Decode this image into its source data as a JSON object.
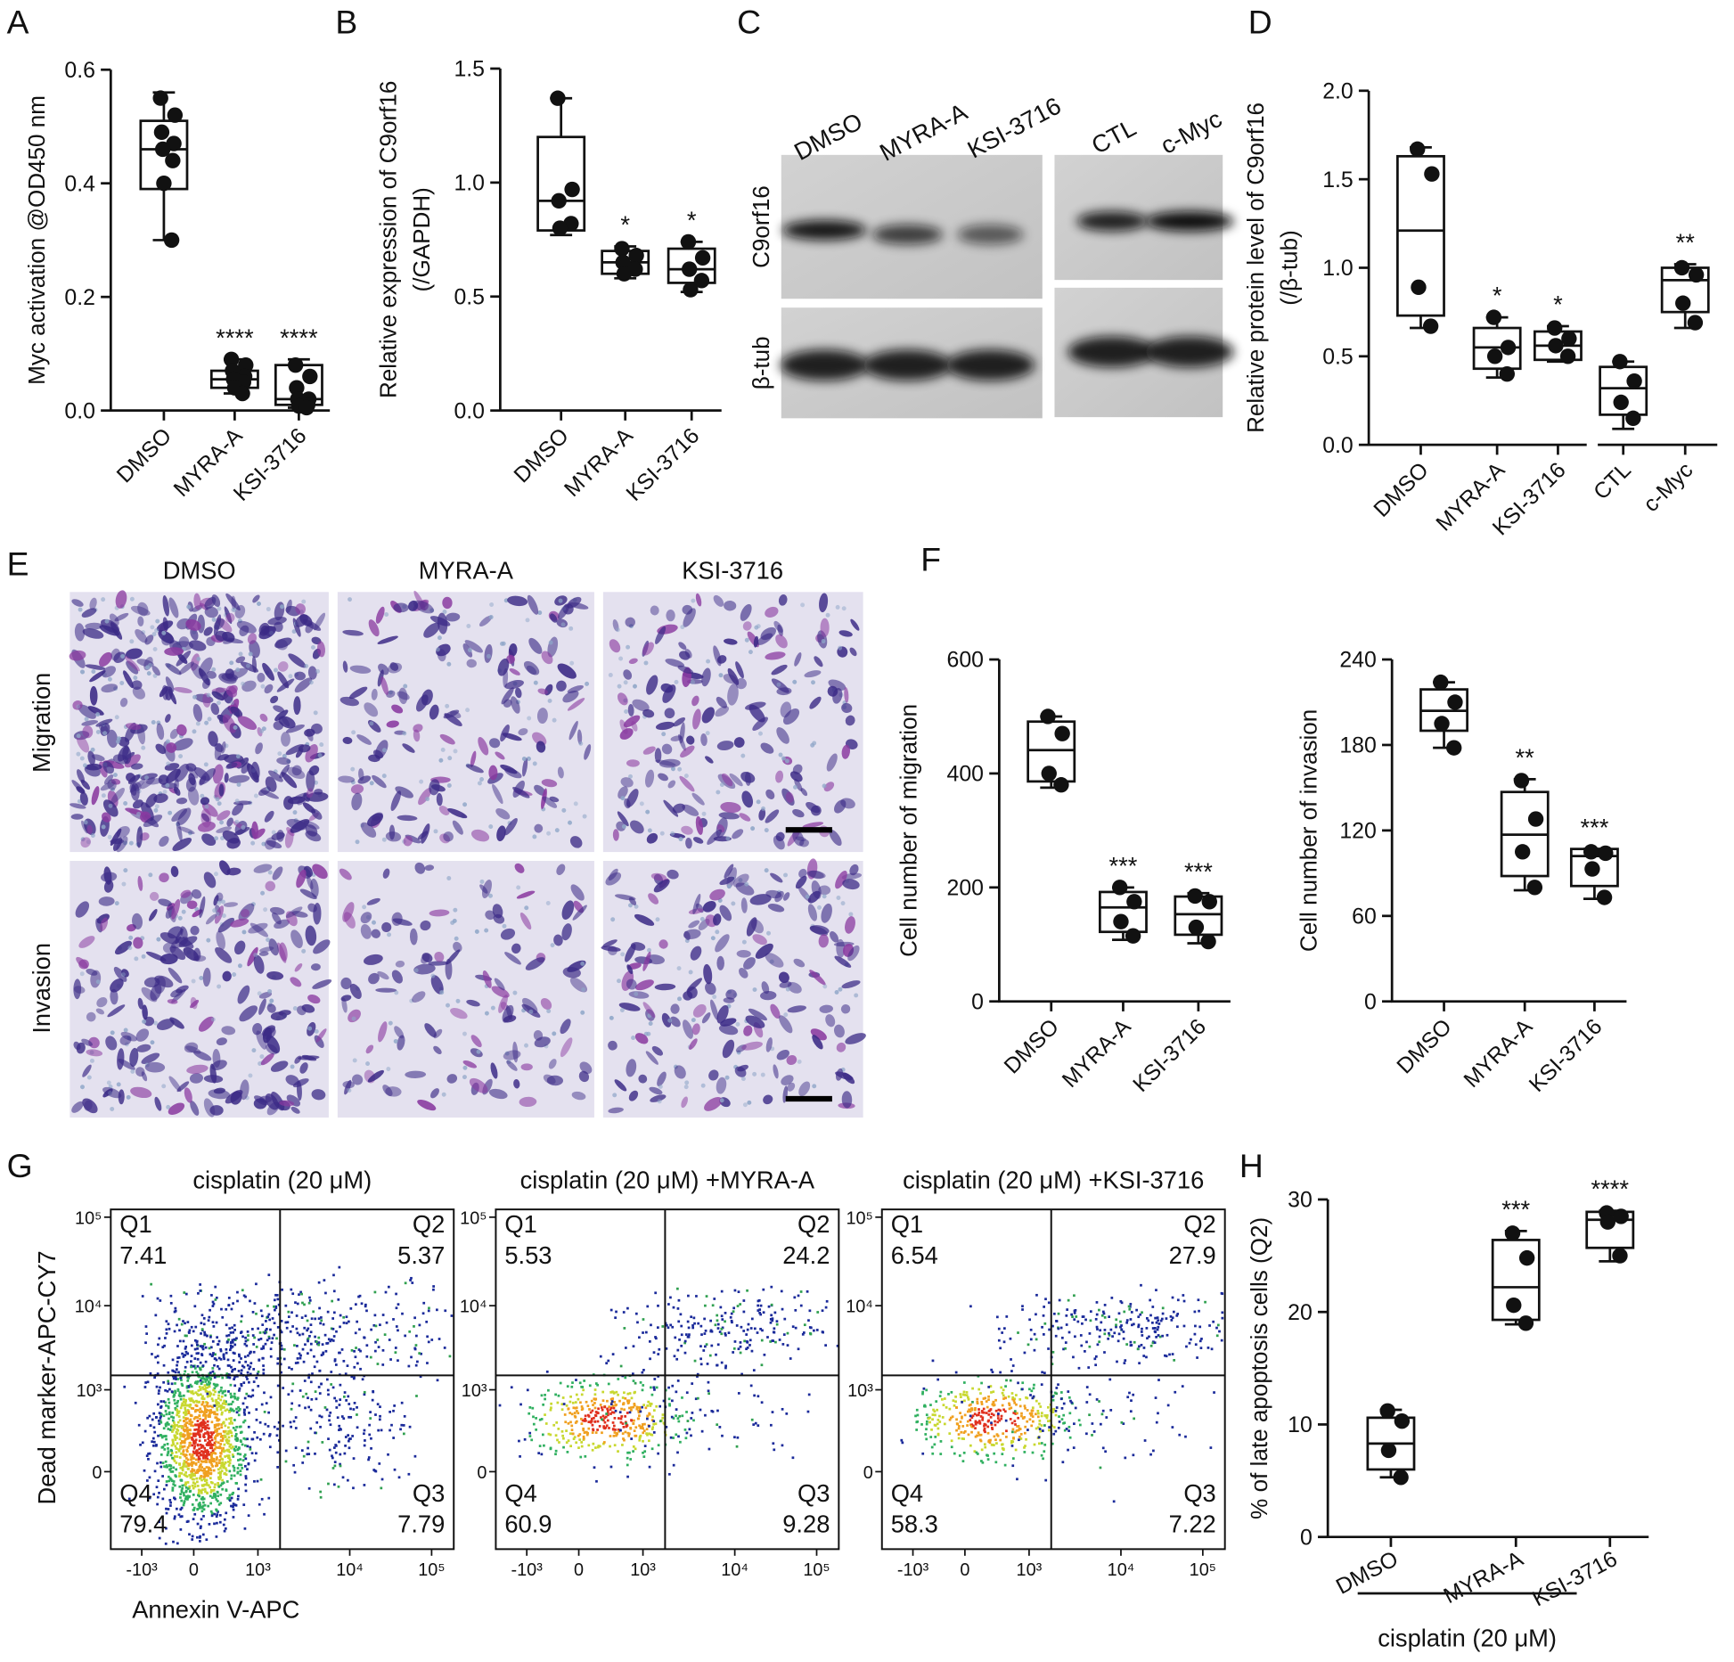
{
  "chart_data": [
    {
      "type": "box",
      "panel": "A",
      "ylabel": [
        "Myc activation @OD450 nm"
      ],
      "categories": [
        "DMSO",
        "MYRA-A",
        "KSI-3716"
      ],
      "ylim": [
        0,
        0.6
      ],
      "yticks": [
        {
          "value": 0,
          "label": "0.0"
        },
        0.2,
        0.4,
        0.6
      ],
      "groups": [
        {
          "min": 0.3,
          "q1": 0.39,
          "median": 0.46,
          "q3": 0.51,
          "max": 0.56,
          "points": [
            0.55,
            0.52,
            0.49,
            0.47,
            0.46,
            0.44,
            0.4,
            0.3
          ]
        },
        {
          "min": 0.03,
          "q1": 0.04,
          "median": 0.055,
          "q3": 0.07,
          "max": 0.09,
          "points": [
            0.09,
            0.08,
            0.07,
            0.06,
            0.055,
            0.05,
            0.04,
            0.03
          ]
        },
        {
          "min": 0.005,
          "q1": 0.01,
          "median": 0.02,
          "q3": 0.08,
          "max": 0.09,
          "points": [
            0.08,
            0.06,
            0.04,
            0.02,
            0.02,
            0.01,
            0.008,
            0.005
          ]
        }
      ],
      "annotations": [
        null,
        "****",
        "****"
      ]
    },
    {
      "type": "box",
      "panel": "B",
      "ylabel": [
        "Relative expression of C9orf16",
        "(/GAPDH)"
      ],
      "categories": [
        "DMSO",
        "MYRA-A",
        "KSI-3716"
      ],
      "ylim": [
        0,
        1.5
      ],
      "yticks": [
        {
          "value": 0,
          "label": "0.0"
        },
        0.5,
        {
          "value": 1,
          "label": "1.0"
        },
        1.5
      ],
      "groups": [
        {
          "min": 0.77,
          "q1": 0.79,
          "median": 0.92,
          "q3": 1.2,
          "max": 1.37,
          "points": [
            1.37,
            0.97,
            0.92,
            0.82,
            0.8
          ]
        },
        {
          "min": 0.58,
          "q1": 0.6,
          "median": 0.65,
          "q3": 0.7,
          "max": 0.72,
          "points": [
            0.71,
            0.68,
            0.65,
            0.62,
            0.6
          ]
        },
        {
          "min": 0.52,
          "q1": 0.56,
          "median": 0.62,
          "q3": 0.71,
          "max": 0.74,
          "points": [
            0.74,
            0.67,
            0.62,
            0.57,
            0.53
          ]
        }
      ],
      "annotations": [
        null,
        "*",
        "*"
      ]
    },
    {
      "type": "box",
      "panel": "D",
      "ylabel": [
        "Relative protein level of C9orf16",
        "(/β-tub)"
      ],
      "categories": [
        "DMSO",
        "MYRA-A",
        "KSI-3716",
        "CTL",
        "c-Myc"
      ],
      "ylim": [
        0,
        2
      ],
      "yticks": [
        {
          "value": 0,
          "label": "0.0"
        },
        0.5,
        {
          "value": 1,
          "label": "1.0"
        },
        1.5,
        {
          "value": 2,
          "label": "2.0"
        }
      ],
      "groups": [
        {
          "min": 0.66,
          "q1": 0.73,
          "median": 1.21,
          "q3": 1.63,
          "max": 1.68,
          "points": [
            1.67,
            1.53,
            0.89,
            0.67
          ]
        },
        {
          "min": 0.38,
          "q1": 0.43,
          "median": 0.55,
          "q3": 0.66,
          "max": 0.72,
          "points": [
            0.72,
            0.55,
            0.5,
            0.4
          ]
        },
        {
          "min": 0.47,
          "q1": 0.48,
          "median": 0.56,
          "q3": 0.64,
          "max": 0.67,
          "points": [
            0.66,
            0.6,
            0.56,
            0.5
          ]
        },
        {
          "min": 0.09,
          "q1": 0.17,
          "median": 0.32,
          "q3": 0.44,
          "max": 0.47,
          "points": [
            0.47,
            0.36,
            0.24,
            0.15
          ]
        },
        {
          "min": 0.66,
          "q1": 0.75,
          "median": 0.93,
          "q3": 1.0,
          "max": 1.02,
          "points": [
            1.0,
            0.96,
            0.8,
            0.69
          ]
        }
      ],
      "annotations": [
        null,
        "*",
        "*",
        null,
        "**"
      ]
    },
    {
      "type": "box",
      "panel": "F",
      "ylabel": [
        "Cell number of migration"
      ],
      "categories": [
        "DMSO",
        "MYRA-A",
        "KSI-3716"
      ],
      "ylim": [
        0,
        600
      ],
      "yticks": [
        0,
        200,
        400,
        600
      ],
      "groups": [
        {
          "min": 375,
          "q1": 386,
          "median": 441,
          "q3": 491,
          "max": 500,
          "points": [
            500,
            470,
            400,
            380
          ]
        },
        {
          "min": 108,
          "q1": 122,
          "median": 165,
          "q3": 192,
          "max": 200,
          "points": [
            200,
            175,
            140,
            115
          ]
        },
        {
          "min": 102,
          "q1": 117,
          "median": 153,
          "q3": 184,
          "max": 190,
          "points": [
            185,
            175,
            130,
            105
          ]
        }
      ],
      "annotations": [
        null,
        "***",
        "***"
      ]
    },
    {
      "type": "box",
      "ylabel": [
        "Cell number of invasion"
      ],
      "categories": [
        "DMSO",
        "MYRA-A",
        "KSI-3716"
      ],
      "ylim": [
        0,
        240
      ],
      "yticks": [
        0,
        60,
        120,
        180,
        240
      ],
      "groups": [
        {
          "min": 178,
          "q1": 190,
          "median": 204,
          "q3": 219,
          "max": 224,
          "points": [
            224,
            210,
            195,
            178
          ]
        },
        {
          "min": 78,
          "q1": 88,
          "median": 117,
          "q3": 147,
          "max": 156,
          "points": [
            155,
            128,
            105,
            80
          ]
        },
        {
          "min": 72,
          "q1": 81,
          "median": 102,
          "q3": 107,
          "max": 107,
          "points": [
            105,
            104,
            93,
            73
          ]
        }
      ],
      "annotations": [
        null,
        "**",
        "***"
      ]
    },
    {
      "type": "box",
      "panel": "H",
      "ylabel": [
        "% of late apoptosis cells (Q2)"
      ],
      "categories": [
        "DMSO",
        "MYRA-A",
        "KSI-3716"
      ],
      "xgroup_label": "cisplatin (20 μM)",
      "ylim": [
        0,
        30
      ],
      "yticks": [
        0,
        10,
        20,
        30
      ],
      "groups": [
        {
          "min": 5.3,
          "q1": 6.0,
          "median": 8.3,
          "q3": 10.6,
          "max": 11.3,
          "points": [
            11.2,
            10.3,
            7.7,
            5.3
          ]
        },
        {
          "min": 18.9,
          "q1": 19.3,
          "median": 22.2,
          "q3": 26.4,
          "max": 27.2,
          "points": [
            27.0,
            24.8,
            20.6,
            19.0
          ]
        },
        {
          "min": 24.5,
          "q1": 25.7,
          "median": 28.2,
          "q3": 28.9,
          "max": 29.0,
          "points": [
            28.8,
            28.5,
            28.0,
            25.0
          ]
        }
      ],
      "annotations": [
        null,
        "***",
        "****"
      ]
    }
  ],
  "blot": {
    "panel": "C",
    "lanes": [
      "DMSO",
      "MYRA-A",
      "KSI-3716",
      "CTL",
      "c-Myc"
    ],
    "rows": [
      "C9orf16",
      "β-tub"
    ]
  },
  "micrographs": {
    "panel": "E",
    "columns": [
      "DMSO",
      "MYRA-A",
      "KSI-3716"
    ],
    "rows": [
      "Migration",
      "Invasion"
    ]
  },
  "flow": {
    "panel": "G",
    "titles": [
      "cisplatin (20 μM)",
      "cisplatin (20 μM) +MYRA-A",
      "cisplatin (20 μM) +KSI-3716"
    ],
    "ylabel": "Dead marker-APC-CY7",
    "xlabel": "Annexin V-APC",
    "xticks": [
      "-10³",
      "0",
      "10³",
      "10⁴",
      "10⁵"
    ],
    "yticks": [
      "0",
      "10³",
      "10⁴",
      "10⁵"
    ],
    "quadrants": [
      "Q1",
      "Q2",
      "Q3",
      "Q4"
    ],
    "values": [
      [
        7.41,
        5.37,
        7.79,
        79.4
      ],
      [
        5.53,
        24.2,
        9.28,
        60.9
      ],
      [
        6.54,
        27.9,
        7.22,
        58.3
      ]
    ]
  }
}
